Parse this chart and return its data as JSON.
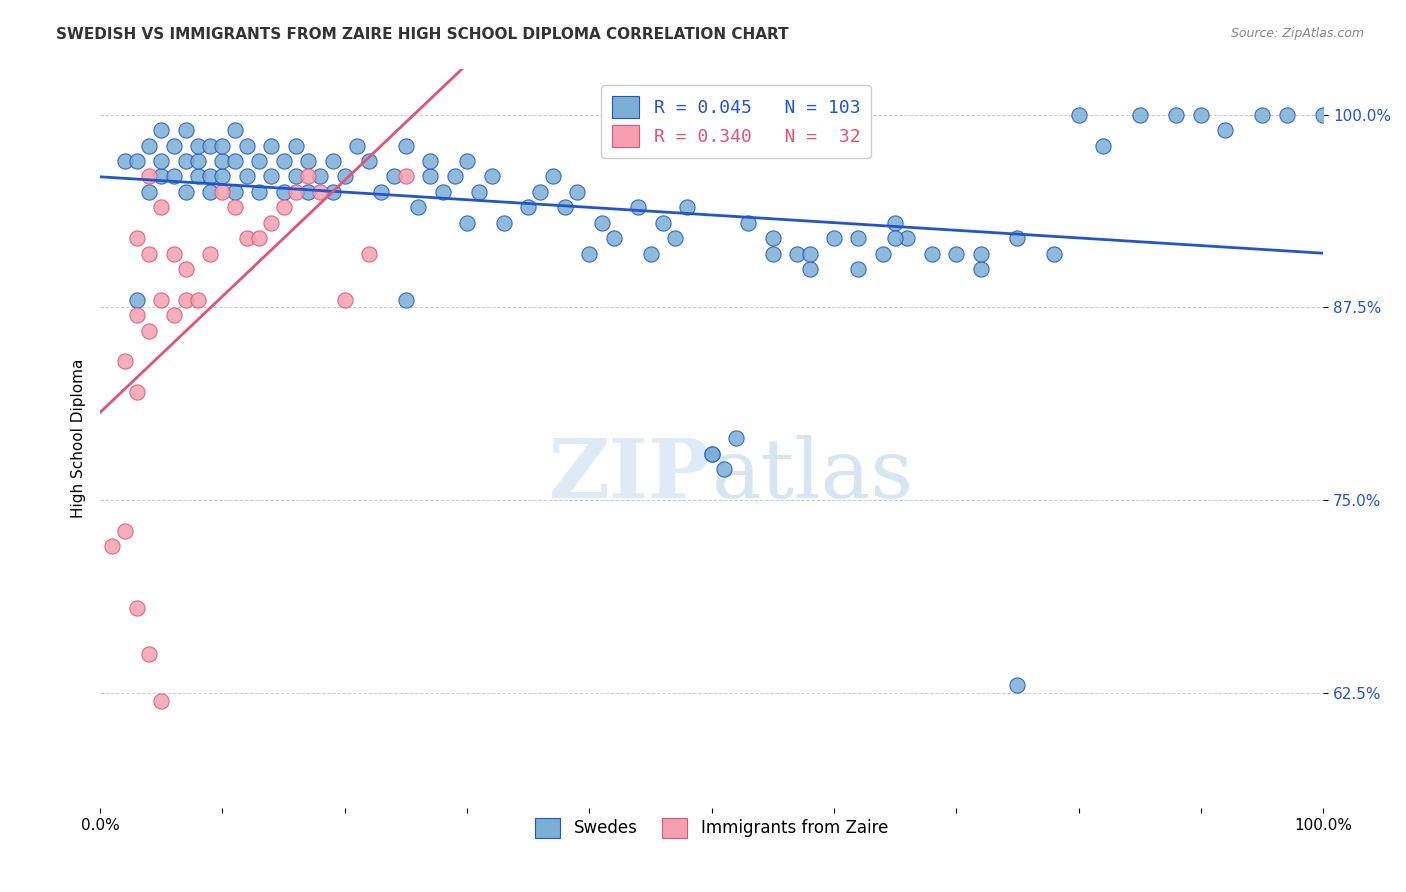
{
  "title": "SWEDISH VS IMMIGRANTS FROM ZAIRE HIGH SCHOOL DIPLOMA CORRELATION CHART",
  "source": "Source: ZipAtlas.com",
  "xlabel": "",
  "ylabel": "High School Diploma",
  "legend_swedes": "Swedes",
  "legend_zaire": "Immigrants from Zaire",
  "r_swedes": 0.045,
  "n_swedes": 103,
  "r_zaire": 0.34,
  "n_zaire": 32,
  "xmin": 0.0,
  "xmax": 1.0,
  "ymin": 0.55,
  "ymax": 1.03,
  "yticks": [
    0.625,
    0.75,
    0.875,
    1.0
  ],
  "ytick_labels": [
    "62.5%",
    "75.0%",
    "87.5%",
    "100.0%"
  ],
  "xticks": [
    0.0,
    0.1,
    0.2,
    0.3,
    0.4,
    0.5,
    0.6,
    0.7,
    0.8,
    0.9,
    1.0
  ],
  "xtick_labels": [
    "0.0%",
    "",
    "",
    "",
    "",
    "",
    "",
    "",
    "",
    "",
    "100.0%"
  ],
  "color_swedes": "#7bafd4",
  "color_zaire": "#f4a0b0",
  "line_color_swedes": "#2255cc",
  "line_color_zaire": "#e05575",
  "background_color": "#ffffff",
  "watermark_zip": "ZIP",
  "watermark_atlas": "atlas",
  "swedes_x": [
    0.02,
    0.03,
    0.04,
    0.04,
    0.05,
    0.05,
    0.05,
    0.06,
    0.06,
    0.07,
    0.07,
    0.07,
    0.08,
    0.08,
    0.08,
    0.09,
    0.09,
    0.09,
    0.1,
    0.1,
    0.1,
    0.11,
    0.11,
    0.11,
    0.12,
    0.12,
    0.13,
    0.13,
    0.14,
    0.14,
    0.15,
    0.15,
    0.16,
    0.16,
    0.17,
    0.17,
    0.18,
    0.19,
    0.19,
    0.2,
    0.21,
    0.22,
    0.23,
    0.24,
    0.25,
    0.26,
    0.27,
    0.27,
    0.28,
    0.29,
    0.3,
    0.3,
    0.31,
    0.32,
    0.33,
    0.35,
    0.36,
    0.37,
    0.38,
    0.39,
    0.4,
    0.41,
    0.42,
    0.44,
    0.45,
    0.46,
    0.47,
    0.48,
    0.5,
    0.52,
    0.53,
    0.55,
    0.57,
    0.58,
    0.6,
    0.62,
    0.64,
    0.65,
    0.66,
    0.7,
    0.72,
    0.75,
    0.78,
    0.8,
    0.82,
    0.85,
    0.88,
    0.9,
    0.92,
    0.95,
    0.97,
    1.0,
    0.03,
    0.25,
    0.5,
    0.51,
    0.55,
    0.58,
    0.62,
    0.65,
    0.68,
    0.72,
    0.75
  ],
  "swedes_y": [
    0.97,
    0.97,
    0.95,
    0.98,
    0.96,
    0.97,
    0.99,
    0.96,
    0.98,
    0.95,
    0.97,
    0.99,
    0.96,
    0.97,
    0.98,
    0.95,
    0.96,
    0.98,
    0.96,
    0.97,
    0.98,
    0.95,
    0.97,
    0.99,
    0.96,
    0.98,
    0.95,
    0.97,
    0.96,
    0.98,
    0.95,
    0.97,
    0.96,
    0.98,
    0.95,
    0.97,
    0.96,
    0.95,
    0.97,
    0.96,
    0.98,
    0.97,
    0.95,
    0.96,
    0.98,
    0.94,
    0.96,
    0.97,
    0.95,
    0.96,
    0.93,
    0.97,
    0.95,
    0.96,
    0.93,
    0.94,
    0.95,
    0.96,
    0.94,
    0.95,
    0.91,
    0.93,
    0.92,
    0.94,
    0.91,
    0.93,
    0.92,
    0.94,
    0.78,
    0.79,
    0.93,
    0.92,
    0.91,
    0.9,
    0.92,
    0.9,
    0.91,
    0.93,
    0.92,
    0.91,
    0.9,
    0.92,
    0.91,
    1.0,
    0.98,
    1.0,
    1.0,
    1.0,
    0.99,
    1.0,
    1.0,
    1.0,
    0.88,
    0.88,
    0.78,
    0.77,
    0.91,
    0.91,
    0.92,
    0.92,
    0.91,
    0.91,
    0.63
  ],
  "zaire_x": [
    0.01,
    0.02,
    0.02,
    0.03,
    0.03,
    0.03,
    0.04,
    0.04,
    0.04,
    0.05,
    0.05,
    0.06,
    0.06,
    0.07,
    0.07,
    0.08,
    0.09,
    0.1,
    0.11,
    0.12,
    0.13,
    0.14,
    0.15,
    0.16,
    0.17,
    0.18,
    0.2,
    0.22,
    0.25,
    0.03,
    0.04,
    0.05
  ],
  "zaire_y": [
    0.72,
    0.84,
    0.73,
    0.92,
    0.87,
    0.82,
    0.96,
    0.91,
    0.86,
    0.94,
    0.88,
    0.91,
    0.87,
    0.9,
    0.88,
    0.88,
    0.91,
    0.95,
    0.94,
    0.92,
    0.92,
    0.93,
    0.94,
    0.95,
    0.96,
    0.95,
    0.88,
    0.91,
    0.96,
    0.68,
    0.65,
    0.62
  ]
}
